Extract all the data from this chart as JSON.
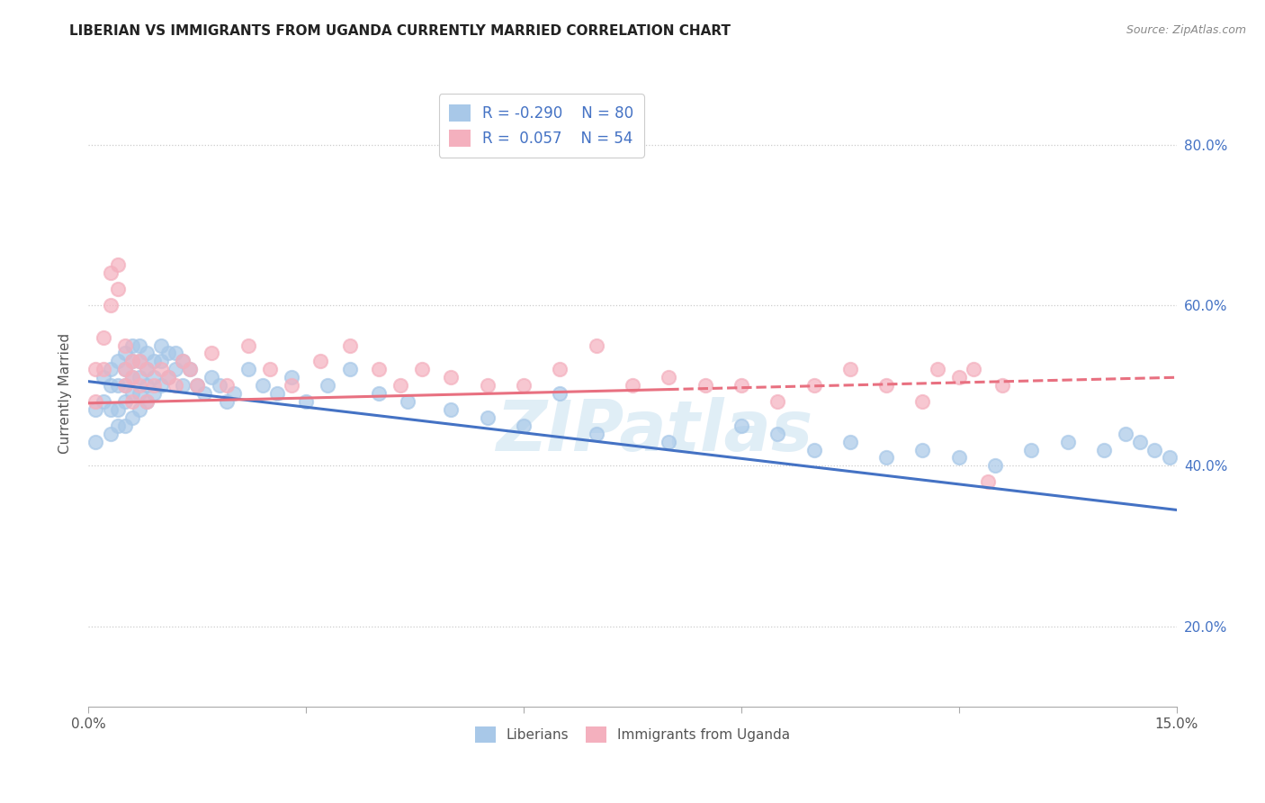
{
  "title": "LIBERIAN VS IMMIGRANTS FROM UGANDA CURRENTLY MARRIED CORRELATION CHART",
  "source": "Source: ZipAtlas.com",
  "ylabel": "Currently Married",
  "xlim": [
    0.0,
    0.15
  ],
  "ylim": [
    0.1,
    0.88
  ],
  "right_yticks": [
    0.2,
    0.4,
    0.6,
    0.8
  ],
  "right_yticklabels": [
    "20.0%",
    "40.0%",
    "60.0%",
    "80.0%"
  ],
  "xticks": [
    0.0,
    0.03,
    0.06,
    0.09,
    0.12,
    0.15
  ],
  "xticklabels": [
    "0.0%",
    "",
    "",
    "",
    "",
    "15.0%"
  ],
  "liberian_color": "#a8c8e8",
  "uganda_color": "#f4b0be",
  "liberian_line_color": "#4472c4",
  "uganda_line_color": "#e87080",
  "R_liberian": -0.29,
  "N_liberian": 80,
  "R_uganda": 0.057,
  "N_uganda": 54,
  "legend_label_1": "Liberians",
  "legend_label_2": "Immigrants from Uganda",
  "watermark": "ZIPatlas",
  "lib_trend_x0": 0.0,
  "lib_trend_y0": 0.505,
  "lib_trend_x1": 0.15,
  "lib_trend_y1": 0.345,
  "uga_trend_x0": 0.0,
  "uga_trend_y0": 0.478,
  "uga_trend_x1": 0.15,
  "uga_trend_y1": 0.51,
  "liberian_x": [
    0.001,
    0.001,
    0.002,
    0.002,
    0.003,
    0.003,
    0.003,
    0.003,
    0.004,
    0.004,
    0.004,
    0.004,
    0.005,
    0.005,
    0.005,
    0.005,
    0.005,
    0.006,
    0.006,
    0.006,
    0.006,
    0.006,
    0.007,
    0.007,
    0.007,
    0.007,
    0.007,
    0.008,
    0.008,
    0.008,
    0.008,
    0.009,
    0.009,
    0.009,
    0.01,
    0.01,
    0.01,
    0.011,
    0.011,
    0.012,
    0.012,
    0.013,
    0.013,
    0.014,
    0.015,
    0.016,
    0.017,
    0.018,
    0.019,
    0.02,
    0.022,
    0.024,
    0.026,
    0.028,
    0.03,
    0.033,
    0.036,
    0.04,
    0.044,
    0.05,
    0.055,
    0.06,
    0.065,
    0.07,
    0.08,
    0.09,
    0.095,
    0.1,
    0.105,
    0.11,
    0.115,
    0.12,
    0.125,
    0.13,
    0.135,
    0.14,
    0.143,
    0.145,
    0.147,
    0.149
  ],
  "liberian_y": [
    0.47,
    0.43,
    0.51,
    0.48,
    0.52,
    0.5,
    0.47,
    0.44,
    0.53,
    0.5,
    0.47,
    0.45,
    0.54,
    0.52,
    0.5,
    0.48,
    0.45,
    0.55,
    0.53,
    0.51,
    0.49,
    0.46,
    0.55,
    0.53,
    0.51,
    0.49,
    0.47,
    0.54,
    0.52,
    0.5,
    0.48,
    0.53,
    0.51,
    0.49,
    0.55,
    0.53,
    0.5,
    0.54,
    0.51,
    0.54,
    0.52,
    0.53,
    0.5,
    0.52,
    0.5,
    0.49,
    0.51,
    0.5,
    0.48,
    0.49,
    0.52,
    0.5,
    0.49,
    0.51,
    0.48,
    0.5,
    0.52,
    0.49,
    0.48,
    0.47,
    0.46,
    0.45,
    0.49,
    0.44,
    0.43,
    0.45,
    0.44,
    0.42,
    0.43,
    0.41,
    0.42,
    0.41,
    0.4,
    0.42,
    0.43,
    0.42,
    0.44,
    0.43,
    0.42,
    0.41
  ],
  "uganda_x": [
    0.001,
    0.001,
    0.002,
    0.002,
    0.003,
    0.003,
    0.004,
    0.004,
    0.005,
    0.005,
    0.005,
    0.006,
    0.006,
    0.006,
    0.007,
    0.007,
    0.008,
    0.008,
    0.009,
    0.01,
    0.011,
    0.012,
    0.013,
    0.014,
    0.015,
    0.017,
    0.019,
    0.022,
    0.025,
    0.028,
    0.032,
    0.036,
    0.04,
    0.043,
    0.046,
    0.05,
    0.055,
    0.06,
    0.065,
    0.07,
    0.075,
    0.08,
    0.085,
    0.09,
    0.095,
    0.1,
    0.105,
    0.11,
    0.115,
    0.117,
    0.12,
    0.122,
    0.124,
    0.126
  ],
  "uganda_y": [
    0.52,
    0.48,
    0.56,
    0.52,
    0.64,
    0.6,
    0.65,
    0.62,
    0.55,
    0.52,
    0.5,
    0.53,
    0.51,
    0.48,
    0.53,
    0.5,
    0.52,
    0.48,
    0.5,
    0.52,
    0.51,
    0.5,
    0.53,
    0.52,
    0.5,
    0.54,
    0.5,
    0.55,
    0.52,
    0.5,
    0.53,
    0.55,
    0.52,
    0.5,
    0.52,
    0.51,
    0.5,
    0.5,
    0.52,
    0.55,
    0.5,
    0.51,
    0.5,
    0.5,
    0.48,
    0.5,
    0.52,
    0.5,
    0.48,
    0.52,
    0.51,
    0.52,
    0.38,
    0.5
  ]
}
